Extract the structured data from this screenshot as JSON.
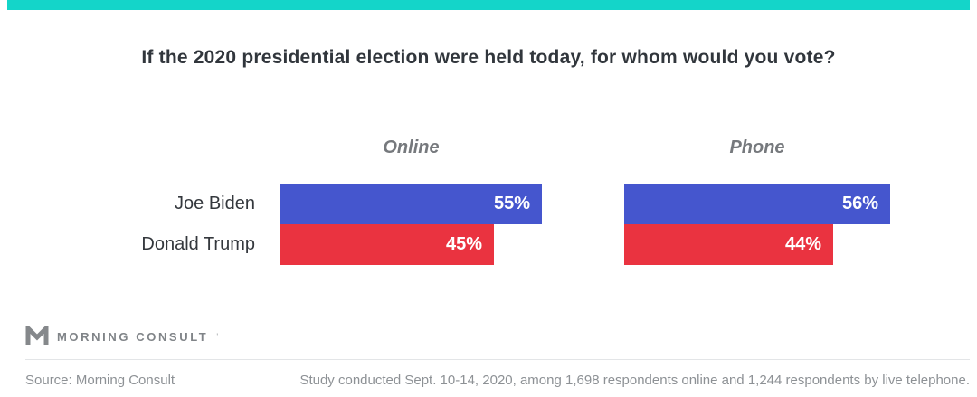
{
  "brand": {
    "accent_color": "#14d5c9",
    "logo_text": "MORNING CONSULT",
    "logo_tm": "'",
    "logo_icon_color": "#85888b"
  },
  "title": "If the 2020 presidential election were held today, for whom would you vote?",
  "chart_data": {
    "type": "bar",
    "orientation": "horizontal",
    "title": "If the 2020 presidential election were held today, for whom would you vote?",
    "categories": [
      "Joe Biden",
      "Donald Trump"
    ],
    "category_colors": [
      "#4556ce",
      "#ea3340"
    ],
    "groups": [
      "Online",
      "Phone"
    ],
    "series": [
      {
        "name": "Online",
        "values": [
          55,
          45
        ],
        "display": [
          "55%",
          "45%"
        ]
      },
      {
        "name": "Phone",
        "values": [
          56,
          44
        ],
        "display": [
          "56%",
          "44%"
        ]
      }
    ],
    "value_suffix": "%",
    "xlim": [
      0,
      100
    ],
    "value_labels": "inside-end",
    "legend": "none",
    "grid": false
  },
  "footer": {
    "source": "Source: Morning Consult",
    "note": "Study conducted Sept. 10-14, 2020, among 1,698 respondents online and 1,244 respondents by live telephone."
  }
}
